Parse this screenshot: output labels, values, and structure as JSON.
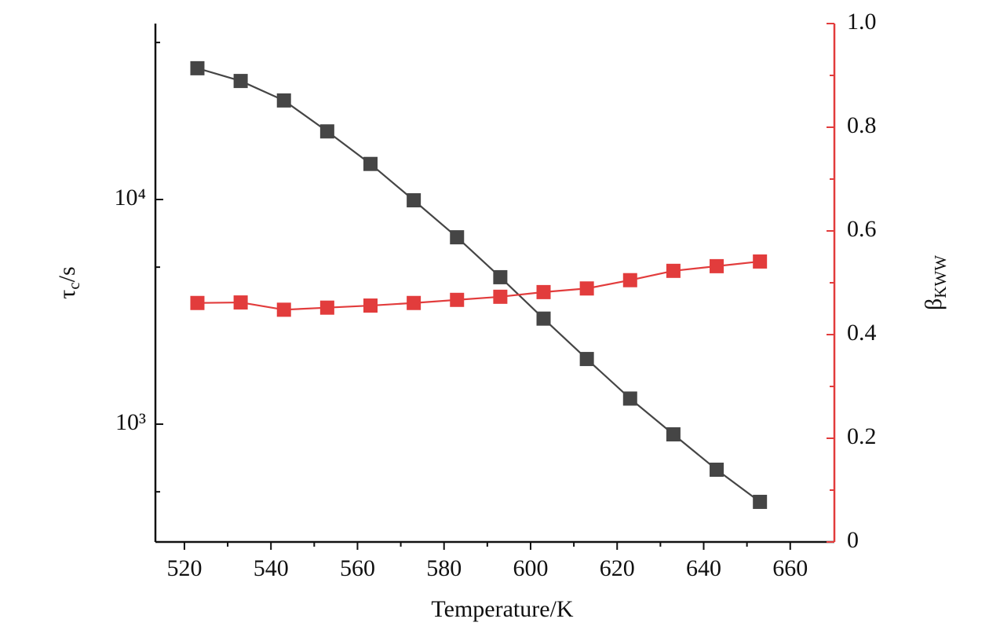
{
  "chart_data": {
    "type": "line",
    "xlabel": "Temperature/K",
    "ylabel": {
      "symbol": "τ",
      "subscript": "c",
      "unit": "/s"
    },
    "y2label": {
      "symbol": "β",
      "subscript": "KWW"
    },
    "x": [
      523,
      533,
      543,
      553,
      563,
      573,
      583,
      593,
      603,
      613,
      623,
      633,
      643,
      653
    ],
    "xlim": [
      513.3,
      670.2
    ],
    "xticks": [
      520,
      540,
      560,
      580,
      600,
      620,
      640,
      660
    ],
    "xminorticks": [
      530,
      550,
      570,
      590,
      610,
      630,
      650
    ],
    "ylog": true,
    "ylim": [
      299,
      60700
    ],
    "yticks": [
      {
        "value": 1000,
        "label": "10³"
      },
      {
        "value": 10000,
        "label": "10⁴"
      }
    ],
    "yminorticks": [
      500,
      5000,
      50000
    ],
    "y2lim": [
      0,
      1
    ],
    "y2ticks": [
      0,
      0.2,
      0.4,
      0.6,
      0.8,
      {
        "value": 1,
        "label": "1.0"
      }
    ],
    "y2minorticks": [
      0.1,
      0.3,
      0.5,
      0.7,
      0.9
    ],
    "y2color": "#e23c3c",
    "series": [
      {
        "color": "#454545",
        "axis": "y",
        "values": [
          38400,
          33700,
          27600,
          20100,
          14400,
          9920,
          6790,
          4510,
          2950,
          1950,
          1300,
          901,
          627,
          451
        ]
      },
      {
        "color": "#e23c3c",
        "axis": "y2",
        "values": [
          0.461,
          0.462,
          0.448,
          0.452,
          0.456,
          0.461,
          0.467,
          0.473,
          0.482,
          0.489,
          0.505,
          0.523,
          0.532,
          0.541
        ]
      }
    ]
  }
}
